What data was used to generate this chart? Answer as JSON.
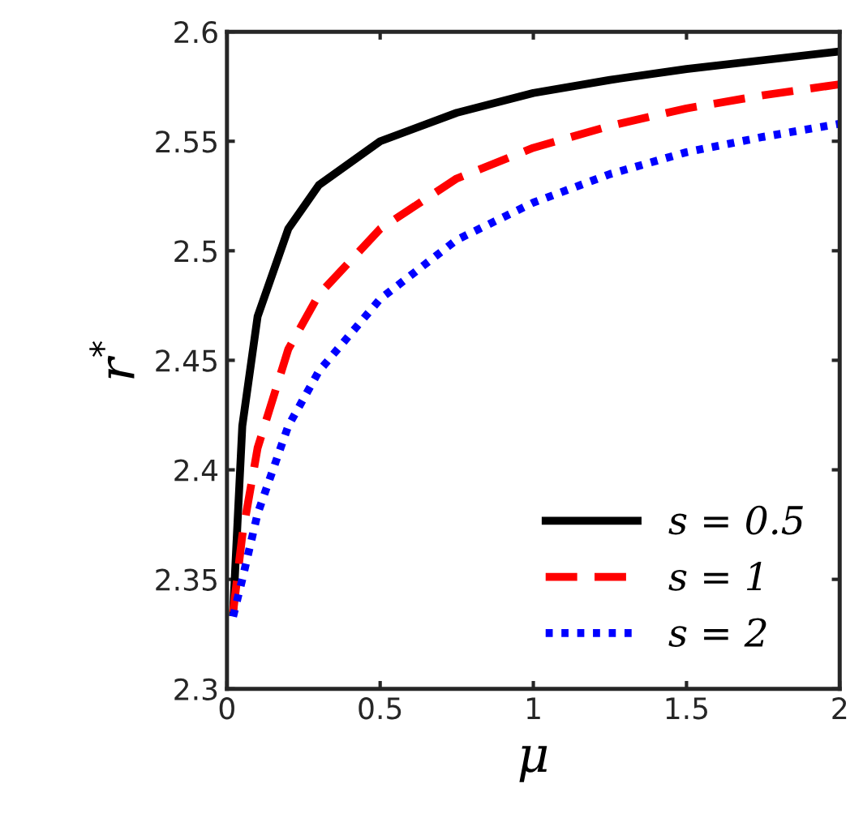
{
  "chart_data": {
    "type": "line",
    "xlabel": "μ",
    "ylabel": "r$^{*}$",
    "xlim": [
      0,
      2
    ],
    "xticks": [
      0,
      0.5,
      1,
      1.5,
      2
    ],
    "ylim": [
      2.3,
      2.6
    ],
    "yticks": [
      2.3,
      2.35,
      2.4,
      2.45,
      2.5,
      2.55,
      2.6
    ],
    "grid": false,
    "legend": "bottom right",
    "series": [
      {
        "name": "s = 0.5",
        "color": "#000000",
        "line_style": "solid",
        "x": [
          0.02,
          0.05,
          0.1,
          0.2,
          0.3,
          0.5,
          0.75,
          1,
          1.25,
          1.5,
          1.75,
          2
        ],
        "values": [
          2.335,
          2.42,
          2.47,
          2.51,
          2.53,
          2.55,
          2.563,
          2.572,
          2.578,
          2.583,
          2.587,
          2.591
        ]
      },
      {
        "name": "s = 1",
        "color": "#ff0000",
        "line_style": "dashed",
        "x": [
          0.02,
          0.05,
          0.1,
          0.2,
          0.3,
          0.5,
          0.75,
          1,
          1.25,
          1.5,
          1.75,
          2
        ],
        "values": [
          2.335,
          2.37,
          2.41,
          2.455,
          2.48,
          2.51,
          2.533,
          2.547,
          2.557,
          2.565,
          2.571,
          2.576
        ]
      },
      {
        "name": "s = 2",
        "color": "#0000ff",
        "line_style": "dotted",
        "x": [
          0.02,
          0.05,
          0.1,
          0.2,
          0.3,
          0.5,
          0.75,
          1,
          1.25,
          1.5,
          1.75,
          2
        ],
        "values": [
          2.333,
          2.35,
          2.38,
          2.42,
          2.445,
          2.478,
          2.505,
          2.522,
          2.535,
          2.545,
          2.552,
          2.558
        ]
      }
    ]
  }
}
